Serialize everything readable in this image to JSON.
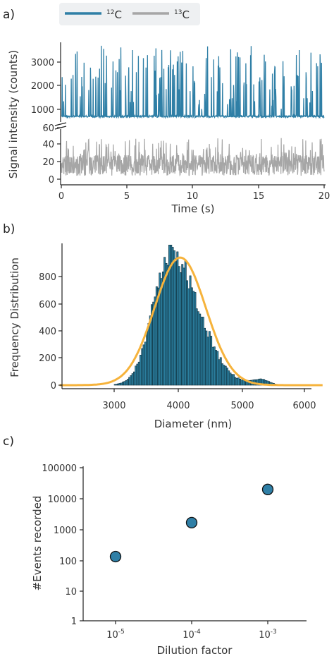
{
  "colors": {
    "c12": "#2f7fa6",
    "c13": "#a6a6a6",
    "hist_fill": "#2b7e9e",
    "fit": "#f6b33c",
    "scatter": "#2f7fa6"
  },
  "chart_data": [
    {
      "panel": "a)",
      "type": "line",
      "legend": {
        "position": "top",
        "items": [
          {
            "sup": "12",
            "main": "C"
          },
          {
            "sup": "13",
            "main": "C"
          }
        ]
      },
      "xlabel": "Time (s)",
      "ylabel": "Signal intensity (counts)",
      "xlim": [
        0,
        20
      ],
      "xticks": [
        "0",
        "5",
        "10",
        "15",
        "20"
      ],
      "broken_y_axis": true,
      "upper_yticks": [
        "3000",
        "2000",
        "1000"
      ],
      "lower_yticks": [
        "60",
        "40",
        "20",
        "0"
      ],
      "upper_ylim": [
        600,
        3800
      ],
      "lower_ylim": [
        0,
        60
      ],
      "series": [
        {
          "name": "12C",
          "baseline": 700,
          "approx_max": 3700,
          "note": "sparse spikes 1000-3700 counts"
        },
        {
          "name": "13C",
          "baseline": 12,
          "approx_max": 48,
          "note": "noise 0-48 counts"
        }
      ]
    },
    {
      "panel": "b)",
      "type": "bar",
      "xlabel": "Diameter (nm)",
      "ylabel": "Frequency Distribution",
      "xlim": [
        2100,
        6300
      ],
      "ylim": [
        0,
        1000
      ],
      "xticks": [
        "3000",
        "4000",
        "5000",
        "6000"
      ],
      "yticks": [
        "0",
        "200",
        "400",
        "600",
        "800"
      ],
      "histogram_peak_diameter": 3880,
      "histogram_peak_count": 980,
      "fit": {
        "type": "gaussian",
        "center": 4030,
        "amplitude": 940,
        "sigma": 400
      }
    },
    {
      "panel": "c)",
      "type": "scatter",
      "xlabel": "Dilution factor",
      "ylabel": "#Events recorded",
      "y_scale": "log",
      "yticks": [
        "100000",
        "10000",
        "1000",
        "100",
        "10",
        "1"
      ],
      "x_categories": [
        {
          "base": "10",
          "exp": "-5"
        },
        {
          "base": "10",
          "exp": "-4"
        },
        {
          "base": "10",
          "exp": "-3"
        }
      ],
      "y": [
        125,
        1600,
        19500
      ]
    }
  ]
}
